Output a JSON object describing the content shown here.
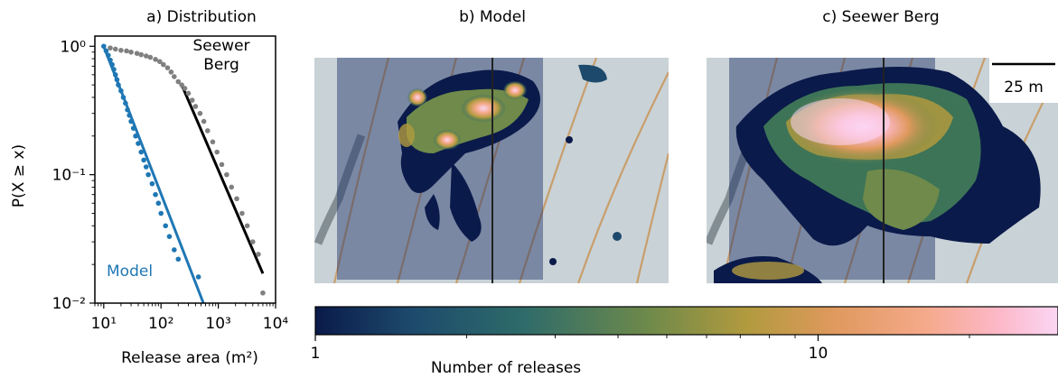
{
  "chart_data": [
    {
      "panel": "a",
      "type": "scatter",
      "title": "a) Distribution",
      "xlabel": "Release area (m²)",
      "ylabel": "P(X ≥ x)",
      "xscale": "log",
      "yscale": "log",
      "xlim": [
        7,
        10000
      ],
      "ylim": [
        0.01,
        1.2
      ],
      "x_ticks": [
        "10¹",
        "10²",
        "10³",
        "10⁴"
      ],
      "y_ticks": [
        "10⁰",
        "10⁻¹",
        "10⁻²"
      ],
      "grid": false,
      "series": [
        {
          "name": "Model",
          "color": "#1f77b4",
          "kind": "points",
          "x": [
            10,
            11,
            12,
            13,
            14,
            15,
            16,
            17,
            18,
            20,
            22,
            24,
            26,
            28,
            30,
            33,
            36,
            40,
            45,
            50,
            55,
            60,
            70,
            80,
            90,
            100,
            120,
            140,
            170,
            200,
            450
          ],
          "y": [
            1.0,
            0.92,
            0.85,
            0.78,
            0.72,
            0.66,
            0.6,
            0.55,
            0.5,
            0.45,
            0.4,
            0.36,
            0.32,
            0.29,
            0.26,
            0.23,
            0.2,
            0.175,
            0.15,
            0.13,
            0.115,
            0.1,
            0.085,
            0.07,
            0.06,
            0.05,
            0.04,
            0.033,
            0.026,
            0.022,
            0.016
          ]
        },
        {
          "name": "Model fit",
          "color": "#1f77b4",
          "kind": "line",
          "x": [
            10,
            550
          ],
          "y": [
            1.0,
            0.01
          ]
        },
        {
          "name": "Seewer Berg",
          "color": "#808080",
          "kind": "points",
          "x": [
            13,
            16,
            20,
            25,
            30,
            38,
            45,
            55,
            65,
            80,
            95,
            110,
            130,
            150,
            170,
            200,
            230,
            260,
            300,
            350,
            400,
            480,
            560,
            650,
            800,
            950,
            1150,
            1400,
            1700,
            2100,
            2600,
            3200,
            4000,
            5000,
            6000
          ],
          "y": [
            0.97,
            0.95,
            0.93,
            0.92,
            0.9,
            0.88,
            0.86,
            0.84,
            0.82,
            0.79,
            0.76,
            0.72,
            0.68,
            0.63,
            0.58,
            0.53,
            0.5,
            0.47,
            0.43,
            0.38,
            0.34,
            0.3,
            0.26,
            0.22,
            0.18,
            0.15,
            0.12,
            0.1,
            0.08,
            0.065,
            0.05,
            0.04,
            0.03,
            0.024,
            0.012
          ]
        },
        {
          "name": "Seewer Berg fit",
          "color": "#000000",
          "kind": "line",
          "x": [
            230,
            6000
          ],
          "y": [
            0.5,
            0.017
          ]
        }
      ],
      "annotations": [
        "Seewer",
        "Berg",
        "Model"
      ]
    },
    {
      "panel": "b",
      "type": "heatmap",
      "title": "b) Model"
    },
    {
      "panel": "c",
      "type": "heatmap",
      "title": "c) Seewer Berg",
      "scalebar": "25 m"
    },
    {
      "panel": "colorbar",
      "type": "heatmap",
      "label": "Number of releases",
      "scale": "log",
      "range": [
        1,
        30
      ],
      "tick_labels": [
        "1",
        "10"
      ],
      "colormap": [
        "#0a1a4a",
        "#1d4a6c",
        "#2e6b6a",
        "#6f8a4a",
        "#b19a3e",
        "#e0995e",
        "#f5a98a",
        "#fcb8c8",
        "#fbd6f4"
      ]
    }
  ]
}
